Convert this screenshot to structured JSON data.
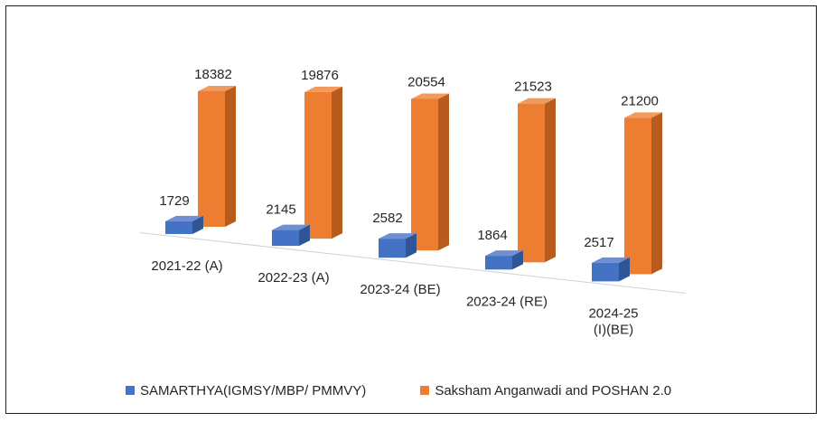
{
  "chart_data": {
    "type": "bar",
    "categories": [
      "2021-22 (A)",
      "2022-23 (A)",
      "2023-24 (BE)",
      "2023-24 (RE)",
      "2024-25 (I)(BE)"
    ],
    "category_lines": [
      [
        "2021-22 (A)"
      ],
      [
        "2022-23 (A)"
      ],
      [
        "2023-24 (BE)"
      ],
      [
        "2023-24 (RE)"
      ],
      [
        "2024-25",
        "(I)(BE)"
      ]
    ],
    "series": [
      {
        "name": "SAMARTHYA(IGMSY/MBP/ PMMVY)",
        "values": [
          1729,
          2145,
          2582,
          1864,
          2517
        ],
        "labels": [
          "1729",
          "2145",
          "2582",
          "1864",
          "2517"
        ],
        "color": "#4472C4",
        "color_side": "#2F5597",
        "color_top": "#6E8FD3"
      },
      {
        "name": "Saksham Anganwadi and POSHAN 2.0",
        "values": [
          18382,
          19876,
          20554,
          21523,
          21200
        ],
        "labels": [
          "18382",
          "19876",
          "20554",
          "21523",
          "21200"
        ],
        "color": "#ED7D31",
        "color_side": "#B85C1E",
        "color_top": "#F29A5E"
      }
    ],
    "ylim": [
      0,
      22000
    ],
    "grid": false,
    "legend_position": "bottom",
    "style": "3d-clustered-column"
  }
}
